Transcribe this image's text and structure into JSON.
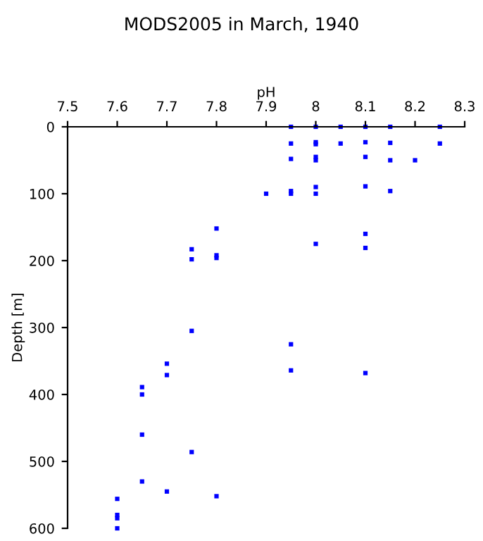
{
  "chart_data": {
    "type": "scatter",
    "title": "MODS2005 in March, 1940",
    "xlabel": "pH",
    "ylabel": "Depth [m]",
    "x": [
      7.95,
      7.95,
      7.95,
      7.95,
      7.95,
      8.0,
      8.0,
      8.0,
      8.0,
      8.0,
      8.0,
      8.0,
      8.0,
      8.05,
      8.05,
      8.1,
      8.1,
      8.1,
      8.1,
      8.1,
      8.1,
      8.15,
      8.15,
      8.15,
      8.15,
      8.2,
      8.25,
      8.25,
      7.9,
      7.8,
      7.8,
      7.8,
      7.75,
      7.75,
      7.75,
      7.75,
      7.95,
      7.95,
      8.1,
      7.7,
      7.7,
      7.7,
      7.65,
      7.65,
      7.65,
      7.65,
      7.8,
      7.6,
      7.6,
      7.6,
      7.6
    ],
    "values": [
      0,
      25,
      48,
      96,
      100,
      0,
      23,
      26,
      45,
      50,
      90,
      100,
      175,
      0,
      25,
      0,
      23,
      45,
      89,
      160,
      181,
      0,
      24,
      50,
      96,
      50,
      0,
      25,
      100,
      152,
      192,
      196,
      183,
      198,
      305,
      486,
      325,
      364,
      368,
      354,
      371,
      545,
      389,
      400,
      460,
      530,
      552,
      556,
      580,
      585,
      600
    ],
    "color": "#0000ff",
    "marker": "square",
    "xlim": [
      7.5,
      8.3
    ],
    "xticks": [
      7.5,
      7.6,
      7.7,
      7.8,
      7.9,
      8,
      8.1,
      8.2,
      8.3
    ],
    "ylim": [
      600,
      0
    ],
    "yticks": [
      0,
      100,
      200,
      300,
      400,
      500,
      600
    ],
    "grid": false
  }
}
